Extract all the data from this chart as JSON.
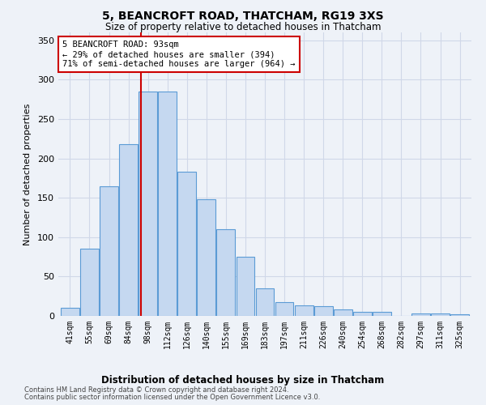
{
  "title": "5, BEANCROFT ROAD, THATCHAM, RG19 3XS",
  "subtitle": "Size of property relative to detached houses in Thatcham",
  "xlabel": "Distribution of detached houses by size in Thatcham",
  "ylabel": "Number of detached properties",
  "categories": [
    "41sqm",
    "55sqm",
    "69sqm",
    "84sqm",
    "98sqm",
    "112sqm",
    "126sqm",
    "140sqm",
    "155sqm",
    "169sqm",
    "183sqm",
    "197sqm",
    "211sqm",
    "226sqm",
    "240sqm",
    "254sqm",
    "268sqm",
    "282sqm",
    "297sqm",
    "311sqm",
    "325sqm"
  ],
  "values": [
    10,
    85,
    165,
    218,
    285,
    285,
    183,
    148,
    110,
    75,
    35,
    18,
    13,
    12,
    8,
    5,
    5,
    0,
    3,
    3,
    2
  ],
  "bar_color": "#c5d8f0",
  "bar_edge_color": "#5b9bd5",
  "grid_color": "#d0d8e8",
  "background_color": "#eef2f8",
  "property_sqm": 93,
  "annotation_line1": "5 BEANCROFT ROAD: 93sqm",
  "annotation_line2": "← 29% of detached houses are smaller (394)",
  "annotation_line3": "71% of semi-detached houses are larger (964) →",
  "annotation_box_color": "#ffffff",
  "annotation_box_edge": "#cc0000",
  "property_line_color": "#cc0000",
  "ylim": [
    0,
    360
  ],
  "yticks": [
    0,
    50,
    100,
    150,
    200,
    250,
    300,
    350
  ],
  "footnote1": "Contains HM Land Registry data © Crown copyright and database right 2024.",
  "footnote2": "Contains public sector information licensed under the Open Government Licence v3.0."
}
